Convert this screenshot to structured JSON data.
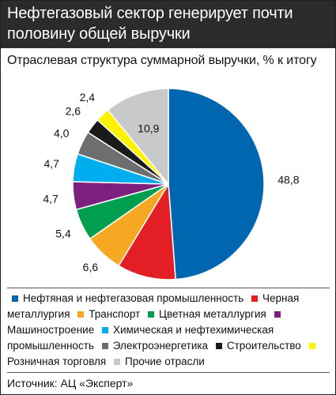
{
  "header": {
    "title_line1": "Нефтегазовый сектор генерирует почти",
    "title_line2": "половину общей выручки"
  },
  "subtitle": "Отраслевая структура суммарной выручки, % к итогу",
  "chart_data": {
    "type": "pie",
    "title": "Нефтегазовый сектор генерирует почти половину общей выручки",
    "subtitle": "Отраслевая структура суммарной выручки, % к итогу",
    "slices": [
      {
        "name": "Нефтяная и нефтегазовая промышленность",
        "value": 48.8,
        "label": "48,8",
        "color": "#0066b0"
      },
      {
        "name": "Черная металлургия",
        "value": 9.9,
        "label": "9,9",
        "color": "#e31e24"
      },
      {
        "name": "Транспорт",
        "value": 6.6,
        "label": "6,6",
        "color": "#f7a823"
      },
      {
        "name": "Цветная металлургия",
        "value": 5.4,
        "label": "5,4",
        "color": "#009e4f"
      },
      {
        "name": "Машиностроение",
        "value": 4.7,
        "label": "4,7",
        "color": "#7d1f7c"
      },
      {
        "name": "Химическая и нефтехимическая промышленность",
        "value": 4.7,
        "label": "4,7",
        "color": "#00aeef"
      },
      {
        "name": "Электроэнергетика",
        "value": 4.0,
        "label": "4,0",
        "color": "#6d6e70"
      },
      {
        "name": "Строительство",
        "value": 2.6,
        "label": "2,6",
        "color": "#1a1a1a"
      },
      {
        "name": "Розничная торговля",
        "value": 2.4,
        "label": "2,4",
        "color": "#fff200"
      },
      {
        "name": "Прочие отрасли",
        "value": 10.9,
        "label": "10,9",
        "color": "#c8c9cb"
      }
    ],
    "legend_position": "bottom"
  },
  "source": "Источник: АЦ «Эксперт»"
}
